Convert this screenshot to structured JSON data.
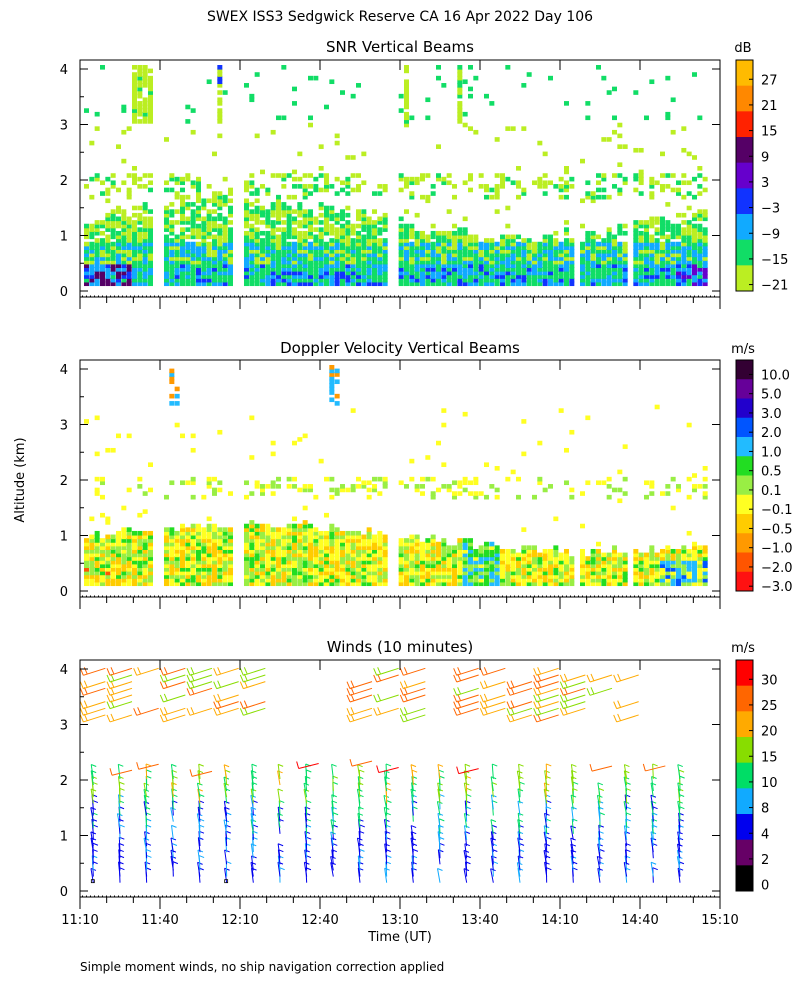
{
  "figure": {
    "title": "SWEX ISS3 Sedgwick Reserve CA  16 Apr 2022 Day 106",
    "y_axis_label": "Altitude (km)",
    "x_axis_label": "Time (UT)",
    "footnote": "Simple moment winds, no ship navigation correction applied"
  },
  "chart_data": [
    {
      "type": "heatmap",
      "title": "SNR Vertical Beams",
      "xlabel": "Time (UT)",
      "ylabel": "Altitude (km)",
      "x_ticks": [
        "11:10",
        "11:40",
        "12:10",
        "12:40",
        "13:10",
        "13:40",
        "14:10",
        "14:40",
        "15:10"
      ],
      "y_ticks": [
        "0",
        "1",
        "2",
        "3",
        "4"
      ],
      "ylim": [
        0,
        4
      ],
      "colorbar": {
        "unit": "dB",
        "labels": [
          "27",
          "21",
          "15",
          "9",
          "3",
          "−3",
          "−9",
          "−15",
          "−21"
        ],
        "colors": [
          "#ffbb00",
          "#ff8800",
          "#ff2200",
          "#550066",
          "#6600cc",
          "#1133ff",
          "#11aaff",
          "#11dd66",
          "#bbee22"
        ]
      },
      "highlights": [
        {
          "t": "11:12",
          "km": 0.5,
          "label": "dark maroon cores near surface"
        },
        {
          "t": "13:35",
          "km": 0.5,
          "label": "blue core"
        },
        {
          "t": "14:55",
          "km": 0.5,
          "label": "blue/maroon core"
        }
      ]
    },
    {
      "type": "heatmap",
      "title": "Doppler Velocity Vertical Beams",
      "xlabel": "Time (UT)",
      "ylabel": "Altitude (km)",
      "x_ticks": [
        "11:10",
        "11:40",
        "12:10",
        "12:40",
        "13:10",
        "13:40",
        "14:10",
        "14:40",
        "15:10"
      ],
      "y_ticks": [
        "0",
        "1",
        "2",
        "3",
        "4"
      ],
      "ylim": [
        0,
        4
      ],
      "colorbar": {
        "unit": "m/s",
        "labels": [
          "10.0",
          "5.0",
          "3.0",
          "2.0",
          "1.0",
          "0.5",
          "0.1",
          "−0.1",
          "−0.5",
          "−1.0",
          "−2.0",
          "−3.0"
        ],
        "colors": [
          "#330033",
          "#660099",
          "#2200cc",
          "#0055ff",
          "#22bbff",
          "#22dd22",
          "#99ee44",
          "#ffff22",
          "#ffcc00",
          "#ff9900",
          "#ff5500",
          "#ff1111"
        ]
      }
    },
    {
      "type": "scatter",
      "title": "Winds (10 minutes)",
      "xlabel": "Time (UT)",
      "ylabel": "Altitude (km)",
      "x_ticks": [
        "11:10",
        "11:40",
        "12:10",
        "12:40",
        "13:10",
        "13:40",
        "14:10",
        "14:40",
        "15:10"
      ],
      "y_ticks": [
        "0",
        "1",
        "2",
        "3",
        "4"
      ],
      "ylim": [
        0,
        4
      ],
      "marker": "wind barb",
      "colorbar": {
        "unit": "m/s",
        "labels": [
          "30",
          "25",
          "20",
          "15",
          "10",
          "8",
          "4",
          "2",
          "0"
        ],
        "colors": [
          "#ff0000",
          "#ff6600",
          "#ffaa00",
          "#88dd00",
          "#00dd66",
          "#11aaff",
          "#0000ee",
          "#660066",
          "#000000"
        ]
      }
    }
  ]
}
